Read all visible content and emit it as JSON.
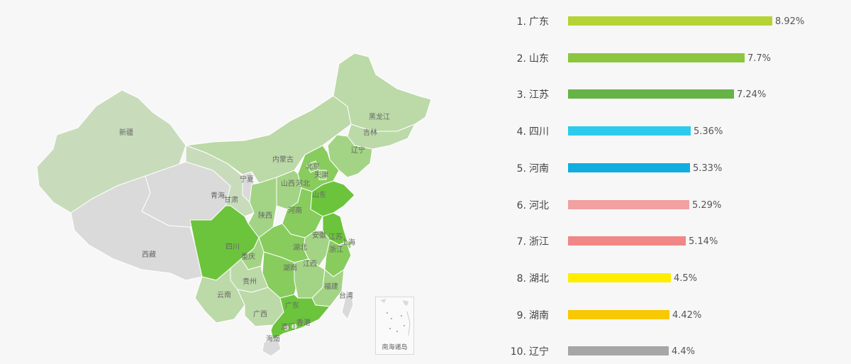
{
  "chart_data": {
    "type": "bar",
    "orientation": "horizontal",
    "title": "",
    "categories": [
      "广东",
      "山东",
      "江苏",
      "四川",
      "河南",
      "河北",
      "浙江",
      "湖北",
      "湖南",
      "辽宁"
    ],
    "ranks": [
      "1.",
      "2.",
      "3.",
      "4.",
      "5.",
      "6.",
      "7.",
      "8.",
      "9.",
      "10."
    ],
    "values": [
      8.92,
      7.7,
      7.24,
      5.36,
      5.33,
      5.29,
      5.14,
      4.5,
      4.42,
      4.4
    ],
    "value_labels": [
      "8.92%",
      "7.7%",
      "7.24%",
      "5.36%",
      "5.33%",
      "5.29%",
      "5.14%",
      "4.5%",
      "4.42%",
      "4.4%"
    ],
    "bar_colors": [
      "#b5d334",
      "#8cc63f",
      "#66b346",
      "#2ccbee",
      "#10aede",
      "#f3a0a0",
      "#f08686",
      "#ffed00",
      "#f8c800",
      "#a6a6a6"
    ],
    "unit": "%"
  },
  "map": {
    "colors": {
      "highest": "#6cc43c",
      "high": "#88cc5e",
      "medium": "#a3d485",
      "low": "#bcd9a8",
      "lowest": "#c8dcbc",
      "none": "#dadada",
      "border": "#ffffff"
    },
    "labels": [
      "新疆",
      "西藏",
      "青海",
      "甘肃",
      "宁夏",
      "内蒙古",
      "黑龙江",
      "吉林",
      "辽宁",
      "北京",
      "天津",
      "河北",
      "山西",
      "陕西",
      "山东",
      "河南",
      "四川",
      "重庆",
      "湖北",
      "安徽",
      "江苏",
      "上海",
      "浙江",
      "湖南",
      "江西",
      "福建",
      "台湾",
      "贵州",
      "云南",
      "广西",
      "广东",
      "香港",
      "澳门",
      "海南"
    ],
    "islands_label": "南海诸岛"
  }
}
